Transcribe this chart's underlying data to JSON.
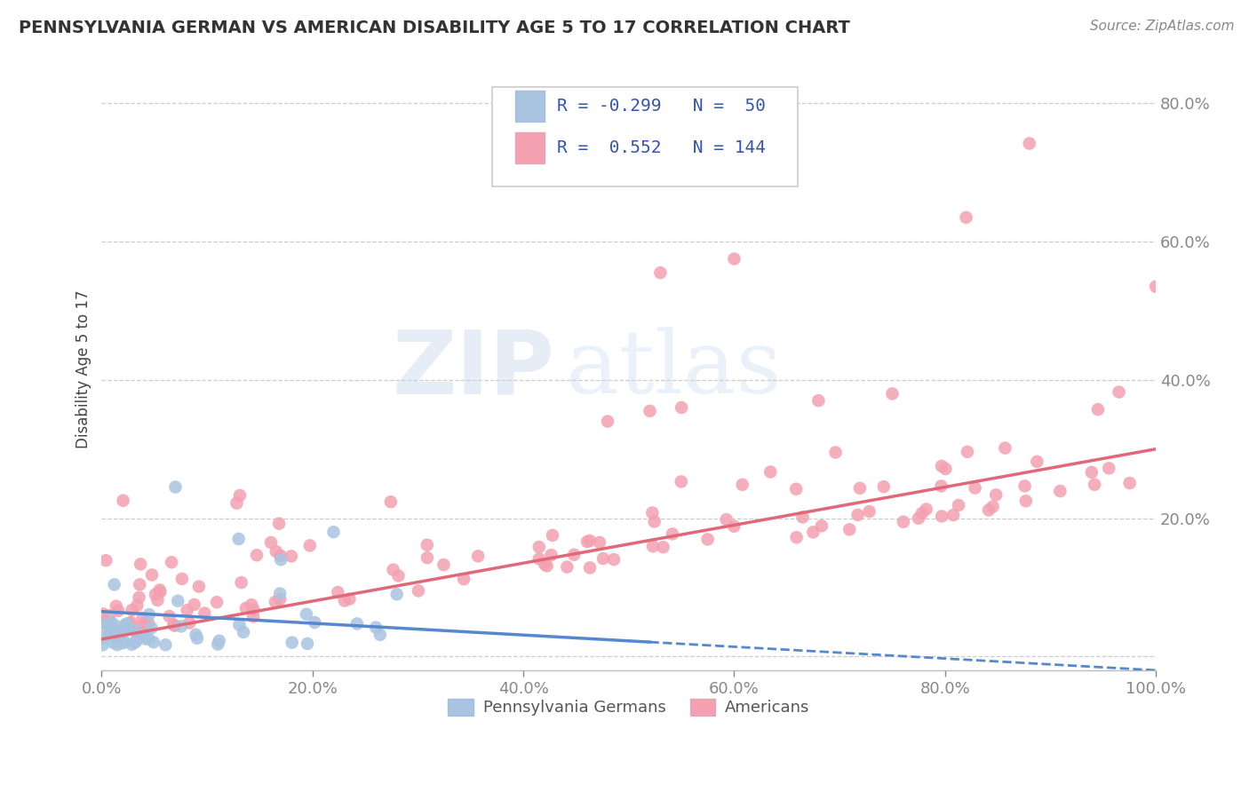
{
  "title": "PENNSYLVANIA GERMAN VS AMERICAN DISABILITY AGE 5 TO 17 CORRELATION CHART",
  "source": "Source: ZipAtlas.com",
  "ylabel": "Disability Age 5 to 17",
  "xmin": 0.0,
  "xmax": 1.0,
  "ymin": -0.02,
  "ymax": 0.85,
  "xticklabels": [
    "0.0%",
    "20.0%",
    "40.0%",
    "60.0%",
    "80.0%",
    "100.0%"
  ],
  "yticklabels": [
    "",
    "20.0%",
    "40.0%",
    "60.0%",
    "80.0%"
  ],
  "blue_R": -0.299,
  "blue_N": 50,
  "pink_R": 0.552,
  "pink_N": 144,
  "blue_color": "#a8c4e0",
  "pink_color": "#f4a0b0",
  "blue_line_color": "#5588cc",
  "pink_line_color": "#e06878",
  "legend_label_blue": "Pennsylvania Germans",
  "legend_label_pink": "Americans",
  "watermark_text": "ZIPatlas",
  "background_color": "#ffffff",
  "title_color": "#333333",
  "source_color": "#888888",
  "tick_color": "#5577bb",
  "grid_color": "#cccccc",
  "ylabel_color": "#444444"
}
